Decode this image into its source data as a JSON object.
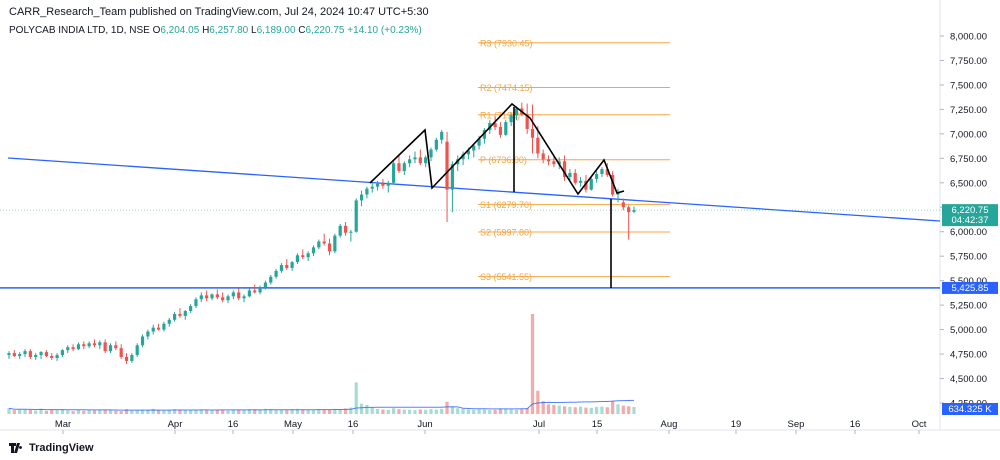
{
  "header": {
    "publisher": "CARR_Research_Team published on TradingView.com, Jul 24, 2024 10:47 UTC+5:30",
    "symbol": "POLYCAB INDIA LTD, 1D, NSE",
    "o_label": "O",
    "o": "6,204.05",
    "h_label": "H",
    "h": "6,257.80",
    "l_label": "L",
    "l": "6,189.00",
    "c_label": "C",
    "c": "6,220.75",
    "change": "+14.10 (+0.23%)"
  },
  "footer": {
    "brand": "TradingView",
    "logo_icon": "tradingview-logo-icon"
  },
  "colors": {
    "up": "#26a69a",
    "down": "#ef5350",
    "trendline": "#2962ff",
    "pivot": "#f7a541",
    "pattern": "#000000",
    "volume_ma": "#2962ff"
  },
  "chart_data": {
    "type": "candlestick",
    "price_axis": {
      "ticks": [
        "8,000.00",
        "7,750.00",
        "7,500.00",
        "7,250.00",
        "7,000.00",
        "6,750.00",
        "6,500.00",
        "6,250.00",
        "6,000.00",
        "5,750.00",
        "5,500.00",
        "5,250.00",
        "5,000.00",
        "4,750.00",
        "4,500.00",
        "4,250.00"
      ],
      "range": [
        4125,
        8100
      ]
    },
    "time_axis": {
      "ticks": [
        "Mar",
        "Apr",
        "16",
        "May",
        "16",
        "Jun",
        "Jul",
        "15",
        "Aug",
        "19",
        "Sep",
        "16",
        "Oct"
      ]
    },
    "last_price": {
      "value": 6220.75,
      "label": "6,220.75",
      "countdown": "04:42:37"
    },
    "horizontal_support": {
      "value": 5425.85,
      "label": "5,425.85"
    },
    "volume_label": "634.325 K",
    "pivot_levels": [
      {
        "name": "R3",
        "value": 7930.45,
        "label": "R3 (7930.45)"
      },
      {
        "name": "R2",
        "value": 7474.15,
        "label": "R2 (7474.15)"
      },
      {
        "name": "R1",
        "value": 7195.0,
        "label": "R1 (7195)"
      },
      {
        "name": "P",
        "value": 6736.0,
        "label": "P (6736.00)"
      },
      {
        "name": "S1",
        "value": 6279.7,
        "label": "S1 (6279.70)"
      },
      {
        "name": "S2",
        "value": 5997.8,
        "label": "S2 (5997.80)"
      },
      {
        "name": "S3",
        "value": 5541.55,
        "label": "S3 (5541.55)"
      }
    ],
    "candles": [
      [
        4740,
        4780,
        4700,
        4760
      ],
      [
        4760,
        4790,
        4720,
        4730
      ],
      [
        4730,
        4770,
        4700,
        4750
      ],
      [
        4750,
        4800,
        4720,
        4780
      ],
      [
        4780,
        4800,
        4700,
        4720
      ],
      [
        4720,
        4760,
        4690,
        4740
      ],
      [
        4740,
        4780,
        4700,
        4770
      ],
      [
        4770,
        4790,
        4720,
        4730
      ],
      [
        4730,
        4760,
        4690,
        4710
      ],
      [
        4710,
        4760,
        4680,
        4740
      ],
      [
        4740,
        4800,
        4720,
        4790
      ],
      [
        4790,
        4840,
        4760,
        4820
      ],
      [
        4820,
        4850,
        4780,
        4800
      ],
      [
        4800,
        4870,
        4790,
        4850
      ],
      [
        4850,
        4880,
        4800,
        4830
      ],
      [
        4830,
        4880,
        4810,
        4860
      ],
      [
        4860,
        4900,
        4820,
        4840
      ],
      [
        4840,
        4890,
        4800,
        4870
      ],
      [
        4870,
        4900,
        4760,
        4780
      ],
      [
        4780,
        4860,
        4760,
        4840
      ],
      [
        4840,
        4880,
        4790,
        4810
      ],
      [
        4810,
        4850,
        4700,
        4720
      ],
      [
        4720,
        4760,
        4650,
        4680
      ],
      [
        4680,
        4760,
        4660,
        4740
      ],
      [
        4740,
        4860,
        4720,
        4840
      ],
      [
        4840,
        4950,
        4820,
        4930
      ],
      [
        4930,
        5000,
        4900,
        4980
      ],
      [
        4980,
        5050,
        4950,
        5020
      ],
      [
        5020,
        5060,
        4990,
        5000
      ],
      [
        5000,
        5080,
        4980,
        5060
      ],
      [
        5060,
        5120,
        5030,
        5100
      ],
      [
        5100,
        5180,
        5080,
        5160
      ],
      [
        5160,
        5220,
        5120,
        5140
      ],
      [
        5140,
        5200,
        5100,
        5190
      ],
      [
        5190,
        5260,
        5170,
        5240
      ],
      [
        5240,
        5330,
        5220,
        5310
      ],
      [
        5310,
        5380,
        5280,
        5350
      ],
      [
        5350,
        5400,
        5290,
        5320
      ],
      [
        5320,
        5370,
        5300,
        5360
      ],
      [
        5360,
        5410,
        5310,
        5330
      ],
      [
        5330,
        5380,
        5280,
        5300
      ],
      [
        5300,
        5360,
        5270,
        5340
      ],
      [
        5340,
        5400,
        5310,
        5380
      ],
      [
        5380,
        5420,
        5300,
        5320
      ],
      [
        5320,
        5360,
        5280,
        5340
      ],
      [
        5340,
        5420,
        5330,
        5400
      ],
      [
        5400,
        5460,
        5370,
        5380
      ],
      [
        5380,
        5450,
        5360,
        5430
      ],
      [
        5430,
        5500,
        5410,
        5480
      ],
      [
        5480,
        5560,
        5460,
        5540
      ],
      [
        5540,
        5620,
        5520,
        5600
      ],
      [
        5600,
        5680,
        5580,
        5660
      ],
      [
        5660,
        5720,
        5610,
        5630
      ],
      [
        5630,
        5700,
        5600,
        5690
      ],
      [
        5690,
        5780,
        5670,
        5760
      ],
      [
        5760,
        5820,
        5720,
        5740
      ],
      [
        5740,
        5800,
        5700,
        5780
      ],
      [
        5780,
        5860,
        5750,
        5840
      ],
      [
        5840,
        5920,
        5820,
        5900
      ],
      [
        5900,
        5980,
        5860,
        5880
      ],
      [
        5880,
        5930,
        5760,
        5800
      ],
      [
        5800,
        5980,
        5780,
        5960
      ],
      [
        5960,
        6080,
        5940,
        6060
      ],
      [
        6060,
        6100,
        5960,
        5990
      ],
      [
        5990,
        6020,
        5900,
        6000
      ],
      [
        6000,
        6340,
        5990,
        6320
      ],
      [
        6320,
        6420,
        6260,
        6380
      ],
      [
        6380,
        6460,
        6340,
        6440
      ],
      [
        6440,
        6500,
        6400,
        6460
      ],
      [
        6460,
        6520,
        6420,
        6490
      ],
      [
        6490,
        6540,
        6440,
        6470
      ],
      [
        6470,
        6520,
        6400,
        6500
      ],
      [
        6500,
        6720,
        6480,
        6700
      ],
      [
        6700,
        6780,
        6600,
        6620
      ],
      [
        6620,
        6720,
        6580,
        6700
      ],
      [
        6700,
        6780,
        6660,
        6740
      ],
      [
        6740,
        6820,
        6700,
        6760
      ],
      [
        6760,
        6840,
        6680,
        6700
      ],
      [
        6700,
        6780,
        6660,
        6760
      ],
      [
        6760,
        6860,
        6720,
        6840
      ],
      [
        6840,
        6960,
        6820,
        6940
      ],
      [
        6940,
        7040,
        6900,
        7020
      ],
      [
        6920,
        7020,
        6100,
        6430
      ],
      [
        6430,
        6720,
        6200,
        6690
      ],
      [
        6690,
        6780,
        6620,
        6740
      ],
      [
        6740,
        6820,
        6680,
        6790
      ],
      [
        6790,
        6860,
        6740,
        6830
      ],
      [
        6830,
        6900,
        6760,
        6880
      ],
      [
        6880,
        6980,
        6840,
        6950
      ],
      [
        6950,
        7060,
        6900,
        7040
      ],
      [
        7040,
        7140,
        7000,
        7110
      ],
      [
        7110,
        7180,
        7040,
        7070
      ],
      [
        7070,
        7120,
        6960,
        6990
      ],
      [
        6990,
        7140,
        6980,
        7120
      ],
      [
        7120,
        7220,
        7080,
        7190
      ],
      [
        7190,
        7280,
        7140,
        7260
      ],
      [
        7260,
        7320,
        7180,
        7200
      ],
      [
        7200,
        7310,
        7000,
        7050
      ],
      [
        7050,
        7300,
        6800,
        6960
      ],
      [
        6960,
        7080,
        6750,
        6800
      ],
      [
        6800,
        6840,
        6700,
        6740
      ],
      [
        6740,
        6780,
        6680,
        6720
      ],
      [
        6720,
        6780,
        6660,
        6690
      ],
      [
        6690,
        6760,
        6640,
        6720
      ],
      [
        6720,
        6780,
        6520,
        6560
      ],
      [
        6560,
        6640,
        6520,
        6600
      ],
      [
        6600,
        6640,
        6480,
        6500
      ],
      [
        6500,
        6560,
        6460,
        6520
      ],
      [
        6520,
        6580,
        6400,
        6430
      ],
      [
        6430,
        6560,
        6420,
        6540
      ],
      [
        6540,
        6620,
        6500,
        6590
      ],
      [
        6590,
        6660,
        6560,
        6640
      ],
      [
        6640,
        6700,
        6560,
        6580
      ],
      [
        6580,
        6620,
        6360,
        6380
      ],
      [
        6380,
        6440,
        6300,
        6400
      ],
      [
        6300,
        6340,
        6220,
        6250
      ],
      [
        6250,
        6270,
        5920,
        6200
      ],
      [
        6204.05,
        6257.8,
        6189,
        6220.75
      ]
    ],
    "volume": [
      180,
      120,
      150,
      140,
      130,
      110,
      160,
      100,
      140,
      120,
      150,
      110,
      90,
      130,
      100,
      120,
      110,
      140,
      130,
      120,
      100,
      90,
      150,
      110,
      120,
      140,
      130,
      160,
      120,
      110,
      130,
      150,
      140,
      120,
      110,
      130,
      140,
      120,
      110,
      130,
      120,
      110,
      140,
      130,
      120,
      150,
      140,
      130,
      160,
      150,
      140,
      130,
      120,
      150,
      160,
      140,
      130,
      120,
      150,
      140,
      130,
      160,
      150,
      170,
      200,
      980,
      320,
      280,
      200,
      160,
      140,
      130,
      180,
      150,
      140,
      130,
      120,
      140,
      130,
      150,
      140,
      160,
      380,
      220,
      180,
      160,
      140,
      130,
      150,
      140,
      120,
      130,
      170,
      160,
      140,
      130,
      150,
      180,
      3100,
      720,
      400,
      300,
      280,
      260,
      240,
      220,
      210,
      230,
      200,
      190,
      220,
      230,
      210,
      400,
      300,
      260,
      240,
      220
    ]
  }
}
